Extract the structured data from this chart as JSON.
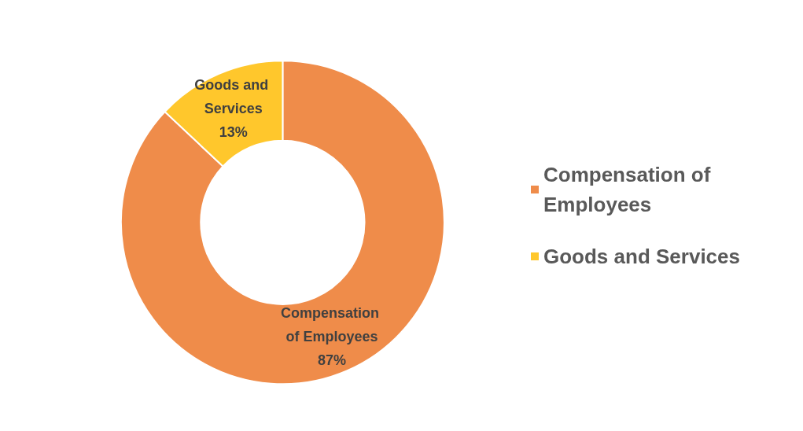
{
  "chart_data": {
    "type": "donut",
    "categories": [
      "Compensation of Employees",
      "Goods and Services"
    ],
    "values": [
      87,
      13
    ],
    "colors": [
      "#ef8c4a",
      "#ffc72c"
    ],
    "value_labels": [
      "87%",
      "13%"
    ],
    "legend": "right"
  }
}
